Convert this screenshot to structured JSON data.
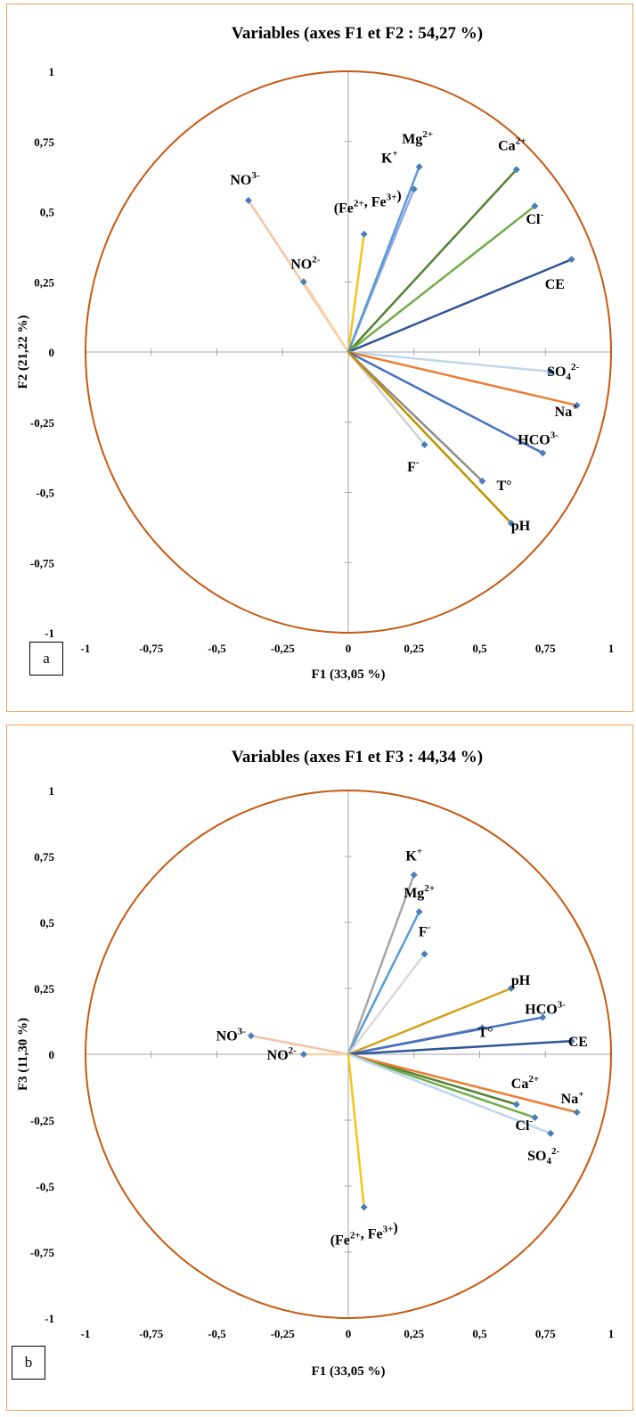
{
  "chart_data": [
    {
      "type": "scatter",
      "panel": "a",
      "title": "Variables (axes F1 et F2 : 54,27 %)",
      "xlabel": "F1 (33,05 %)",
      "ylabel": "F2 (21,22 %)",
      "xlim": [
        -1,
        1
      ],
      "ylim": [
        -1,
        1
      ],
      "xticks": [
        "-1",
        "-0,75",
        "-0,5",
        "-0,25",
        "0",
        "0,25",
        "0,5",
        "0,75",
        "1"
      ],
      "yticks": [
        "1",
        "0,75",
        "0,5",
        "0,25",
        "0",
        "-0,25",
        "-0,5",
        "-0,75",
        "-1"
      ],
      "points": [
        {
          "label": "NO3-",
          "x": -0.38,
          "y": 0.54,
          "color": "#f5c4a6"
        },
        {
          "label": "NO2-",
          "x": -0.17,
          "y": 0.25,
          "color": "#f8d2a8"
        },
        {
          "label": "(Fe2+, Fe3+)",
          "x": 0.06,
          "y": 0.42,
          "color": "#f5c518"
        },
        {
          "label": "K+",
          "x": 0.25,
          "y": 0.58,
          "color": "#8eaadb"
        },
        {
          "label": "Mg2+",
          "x": 0.27,
          "y": 0.66,
          "color": "#5b9bd5"
        },
        {
          "label": "Ca2+",
          "x": 0.64,
          "y": 0.65,
          "color": "#548235"
        },
        {
          "label": "Cl-",
          "x": 0.71,
          "y": 0.52,
          "color": "#70ad47"
        },
        {
          "label": "CE",
          "x": 0.85,
          "y": 0.33,
          "color": "#2f5597"
        },
        {
          "label": "SO42-",
          "x": 0.77,
          "y": -0.07,
          "color": "#bdd7ee"
        },
        {
          "label": "Na+",
          "x": 0.87,
          "y": -0.19,
          "color": "#ed7d31"
        },
        {
          "label": "HCO3-",
          "x": 0.74,
          "y": -0.36,
          "color": "#4472c4"
        },
        {
          "label": "F-",
          "x": 0.29,
          "y": -0.33,
          "color": "#d0d0d0"
        },
        {
          "label": "T°",
          "x": 0.51,
          "y": -0.46,
          "color": "#8c8c8c"
        },
        {
          "label": "pH",
          "x": 0.62,
          "y": -0.61,
          "color": "#bf9000"
        }
      ]
    },
    {
      "type": "scatter",
      "panel": "b",
      "title": "Variables (axes F1 et F3 : 44,34 %)",
      "xlabel": "F1 (33,05 %)",
      "ylabel": "F3 (11,30 %)",
      "xlim": [
        -1,
        1
      ],
      "ylim": [
        -1,
        1
      ],
      "xticks": [
        "-1",
        "-0,75",
        "-0,5",
        "-0,25",
        "0",
        "0,25",
        "0,5",
        "0,75",
        "1"
      ],
      "yticks": [
        "1",
        "0,75",
        "0,5",
        "0,25",
        "0",
        "-0,25",
        "-0,5",
        "-0,75",
        "-1"
      ],
      "points": [
        {
          "label": "NO3-",
          "x": -0.37,
          "y": 0.07,
          "color": "#f5c4a6"
        },
        {
          "label": "NO2-",
          "x": -0.17,
          "y": 0.0,
          "color": "#f8d2a8"
        },
        {
          "label": "K+",
          "x": 0.25,
          "y": 0.68,
          "color": "#a6a6a6"
        },
        {
          "label": "Mg2+",
          "x": 0.27,
          "y": 0.54,
          "color": "#5b9bd5"
        },
        {
          "label": "F-",
          "x": 0.29,
          "y": 0.38,
          "color": "#d9d9d9"
        },
        {
          "label": "pH",
          "x": 0.62,
          "y": 0.25,
          "color": "#d4a017"
        },
        {
          "label": "T°",
          "x": 0.51,
          "y": 0.1,
          "color": "#8c8c8c"
        },
        {
          "label": "HCO3-",
          "x": 0.74,
          "y": 0.14,
          "color": "#4472c4"
        },
        {
          "label": "CE",
          "x": 0.85,
          "y": 0.05,
          "color": "#2f5597"
        },
        {
          "label": "Ca2+",
          "x": 0.64,
          "y": -0.19,
          "color": "#548235"
        },
        {
          "label": "Na+",
          "x": 0.87,
          "y": -0.22,
          "color": "#ed7d31"
        },
        {
          "label": "Cl-",
          "x": 0.71,
          "y": -0.24,
          "color": "#70ad47"
        },
        {
          "label": "SO42-",
          "x": 0.77,
          "y": -0.3,
          "color": "#bdd7ee"
        },
        {
          "label": "(Fe2+, Fe3+)",
          "x": 0.06,
          "y": -0.58,
          "color": "#f5c518"
        }
      ]
    }
  ],
  "colors": {
    "circle": "#c65911",
    "panel_border": "#f0a058",
    "axis": "#a6a6a6",
    "marker": "#4a7ebb"
  }
}
